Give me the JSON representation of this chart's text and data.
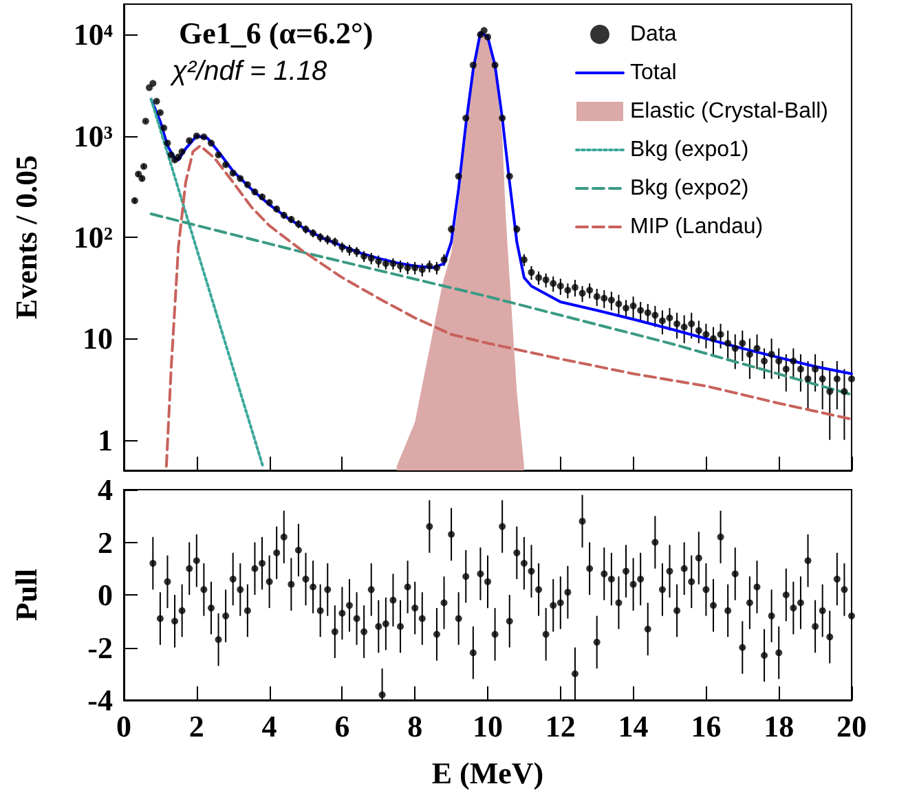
{
  "chart_data": [
    {
      "type": "scatter",
      "title": "Ge1_6 (α=6.2°)",
      "annotations": [
        "χ²/ndf = 1.18"
      ],
      "ylabel": "Events / 0.05",
      "log": "y",
      "grid": false,
      "legend": "top right",
      "tick_labels": "y",
      "xlim": [
        0,
        20
      ],
      "xticks": [
        {
          "value": 0,
          "label": null
        },
        {
          "value": 2,
          "label": null
        },
        {
          "value": 4,
          "label": null
        },
        {
          "value": 6,
          "label": null
        },
        {
          "value": 8,
          "label": null
        },
        {
          "value": 10,
          "label": null
        },
        {
          "value": 12,
          "label": null
        },
        {
          "value": 14,
          "label": null
        },
        {
          "value": 16,
          "label": null
        },
        {
          "value": 18,
          "label": null
        },
        {
          "value": 20,
          "label": null
        }
      ],
      "ylim": [
        0.5,
        20000
      ],
      "yticks": [
        1,
        10,
        {
          "value": 100,
          "label": "10²"
        },
        {
          "value": 1000,
          "label": "10³"
        },
        {
          "value": 10000,
          "label": "10⁴"
        }
      ],
      "series": [
        {
          "name": "Data",
          "type": "scatter",
          "color": "#000000",
          "marker": "circle",
          "x": [
            0.3,
            0.4,
            0.5,
            0.55,
            0.6,
            0.7,
            0.8,
            0.9,
            1.0,
            1.1,
            1.2,
            1.3,
            1.4,
            1.5,
            1.6,
            1.8,
            2.0,
            2.2,
            2.4,
            2.6,
            2.8,
            3.0,
            3.2,
            3.4,
            3.6,
            3.8,
            4.0,
            4.2,
            4.4,
            4.6,
            4.8,
            5.0,
            5.2,
            5.4,
            5.6,
            5.8,
            6.0,
            6.2,
            6.4,
            6.6,
            6.8,
            7.0,
            7.2,
            7.4,
            7.6,
            7.8,
            8.0,
            8.2,
            8.4,
            8.6,
            8.8,
            9.0,
            9.2,
            9.4,
            9.6,
            9.8,
            9.9,
            10.0,
            10.2,
            10.4,
            10.6,
            10.8,
            11.0,
            11.2,
            11.4,
            11.6,
            11.8,
            12.0,
            12.2,
            12.4,
            12.6,
            12.8,
            13.0,
            13.2,
            13.4,
            13.6,
            13.8,
            14.0,
            14.2,
            14.4,
            14.6,
            14.8,
            15.0,
            15.2,
            15.4,
            15.6,
            15.8,
            16.0,
            16.2,
            16.4,
            16.6,
            16.8,
            17.0,
            17.2,
            17.4,
            17.6,
            17.8,
            18.0,
            18.2,
            18.4,
            18.6,
            18.8,
            19.0,
            19.2,
            19.4,
            19.6,
            19.8,
            20.0
          ],
          "values": [
            230,
            420,
            380,
            500,
            1400,
            3000,
            3300,
            2200,
            1700,
            1200,
            850,
            650,
            580,
            620,
            700,
            900,
            1000,
            980,
            850,
            650,
            520,
            430,
            380,
            330,
            280,
            250,
            220,
            190,
            165,
            150,
            135,
            120,
            110,
            100,
            95,
            90,
            80,
            75,
            72,
            65,
            62,
            58,
            55,
            55,
            52,
            50,
            50,
            48,
            52,
            50,
            60,
            120,
            400,
            1500,
            5000,
            10000,
            11000,
            9500,
            5000,
            1500,
            400,
            120,
            60,
            45,
            40,
            38,
            35,
            33,
            30,
            32,
            28,
            30,
            26,
            25,
            24,
            22,
            20,
            21,
            19,
            18,
            17,
            15,
            16,
            14,
            13,
            14,
            12,
            11,
            10,
            11,
            9,
            8,
            9,
            7,
            8,
            6,
            7,
            6,
            5,
            6,
            5,
            4,
            5,
            4,
            3,
            4,
            3,
            4
          ],
          "errors": [
            15,
            20,
            20,
            22,
            37,
            null,
            null,
            47,
            41,
            35,
            29,
            25,
            24,
            25,
            26,
            30,
            32,
            31,
            29,
            25,
            23,
            21,
            19,
            18,
            17,
            16,
            15,
            14,
            13,
            12,
            12,
            11,
            10,
            10,
            10,
            9,
            9,
            9,
            8,
            8,
            8,
            8,
            7,
            7,
            7,
            7,
            7,
            7,
            7,
            7,
            8,
            11,
            20,
            39,
            null,
            null,
            null,
            null,
            null,
            39,
            20,
            11,
            8,
            7,
            6,
            6,
            6,
            6,
            5,
            6,
            5,
            5,
            5,
            5,
            5,
            5,
            4,
            5,
            4,
            4,
            4,
            4,
            4,
            4,
            4,
            4,
            3,
            3,
            3,
            3,
            3,
            3,
            3,
            3,
            3,
            2,
            3,
            2,
            2,
            2,
            2,
            2,
            2,
            2,
            2,
            2,
            2,
            2
          ]
        },
        {
          "name": "Total",
          "type": "line",
          "color": "#0000ff",
          "marker": "none",
          "line_style": "solid",
          "x": [
            0.75,
            1.0,
            1.2,
            1.4,
            1.5,
            1.7,
            2.0,
            2.3,
            2.6,
            3.0,
            3.5,
            4.0,
            4.5,
            5.0,
            5.5,
            6.0,
            6.5,
            7.0,
            7.5,
            8.0,
            8.5,
            8.8,
            9.0,
            9.2,
            9.4,
            9.6,
            9.8,
            10.0,
            10.2,
            10.4,
            10.6,
            10.8,
            11.0,
            11.2,
            12,
            13,
            14,
            15,
            16,
            17,
            18,
            19,
            20
          ],
          "values": [
            2300,
            1400,
            800,
            600,
            580,
            750,
            1000,
            950,
            700,
            450,
            300,
            210,
            155,
            120,
            97,
            82,
            70,
            62,
            56,
            52,
            50,
            55,
            90,
            300,
            1300,
            4500,
            10500,
            9500,
            5000,
            1500,
            350,
            90,
            40,
            33,
            23,
            19,
            15.5,
            12.5,
            10,
            8,
            6.5,
            5.3,
            4.5
          ]
        },
        {
          "name": "Elastic (Crystal-Ball)",
          "type": "area",
          "color": "#dba9a7",
          "x": [
            7.5,
            8.0,
            8.5,
            8.76,
            9.0,
            9.2,
            9.4,
            9.6,
            9.8,
            9.9,
            10.0,
            10.2,
            10.4,
            10.5,
            10.6,
            10.8,
            11.0
          ],
          "values": [
            0.55,
            1.5,
            12,
            35,
            70,
            220,
            1000,
            4000,
            10500,
            11000,
            9500,
            4500,
            1000,
            150,
            40,
            3,
            0.55
          ]
        },
        {
          "name": "Bkg (expo1)",
          "type": "line",
          "color": "#3aa89a",
          "marker": "none",
          "line_style": "dotted",
          "x": [
            0.75,
            3.82
          ],
          "values": [
            2300,
            0.55
          ]
        },
        {
          "name": "Bkg (expo2)",
          "type": "line",
          "color": "#3a9a84",
          "marker": "none",
          "line_style": "dashed",
          "x": [
            0.75,
            5,
            10,
            15,
            20
          ],
          "values": [
            170,
            70,
            26,
            9,
            2.8
          ]
        },
        {
          "name": "MIP (Landau)",
          "type": "line",
          "color": "#c8625c",
          "marker": "none",
          "line_style": "dashed",
          "x": [
            1.17,
            1.3,
            1.5,
            1.7,
            1.9,
            2.1,
            2.5,
            3,
            3.5,
            4,
            4.9,
            6,
            7,
            8,
            9,
            10,
            12,
            14,
            16,
            18,
            20
          ],
          "values": [
            0.55,
            5,
            80,
            350,
            700,
            800,
            600,
            350,
            200,
            130,
            74,
            40,
            25,
            16,
            11,
            9,
            6.3,
            4.5,
            3.4,
            2.3,
            1.6
          ]
        }
      ]
    },
    {
      "type": "scatter",
      "xlabel": "E (MeV)",
      "ylabel": "Pull",
      "grid": false,
      "marker": "circle",
      "color": "#000000",
      "xlim": [
        0,
        20
      ],
      "xticks": [
        0,
        2,
        4,
        6,
        8,
        10,
        12,
        14,
        16,
        18,
        20
      ],
      "ylim": [
        -4,
        4
      ],
      "yticks": [
        -4,
        -2,
        0,
        2,
        4
      ],
      "x": [
        0.8,
        1.0,
        1.2,
        1.4,
        1.6,
        1.8,
        2.0,
        2.2,
        2.4,
        2.6,
        2.8,
        3.0,
        3.2,
        3.4,
        3.6,
        3.8,
        4.0,
        4.2,
        4.4,
        4.6,
        4.8,
        5.0,
        5.2,
        5.4,
        5.6,
        5.8,
        6.0,
        6.2,
        6.4,
        6.6,
        6.8,
        7.0,
        7.1,
        7.2,
        7.4,
        7.6,
        7.8,
        8.0,
        8.2,
        8.4,
        8.6,
        8.8,
        9.0,
        9.2,
        9.4,
        9.6,
        9.8,
        10.0,
        10.2,
        10.4,
        10.6,
        10.8,
        11.0,
        11.2,
        11.4,
        11.6,
        11.8,
        12.0,
        12.2,
        12.4,
        12.6,
        12.8,
        13.0,
        13.2,
        13.4,
        13.6,
        13.8,
        14.0,
        14.2,
        14.4,
        14.6,
        14.8,
        15.0,
        15.2,
        15.4,
        15.6,
        15.8,
        16.0,
        16.2,
        16.4,
        16.6,
        16.8,
        17.0,
        17.2,
        17.4,
        17.6,
        17.8,
        18.0,
        18.2,
        18.4,
        18.6,
        18.8,
        19.0,
        19.2,
        19.4,
        19.6,
        19.8,
        20.0
      ],
      "values": [
        1.2,
        -0.9,
        0.5,
        -1.0,
        -0.6,
        1.0,
        1.3,
        0.2,
        -0.5,
        -1.7,
        -0.8,
        0.6,
        0.2,
        -0.6,
        1.0,
        1.2,
        0.5,
        1.6,
        2.2,
        0.4,
        1.7,
        0.6,
        0.3,
        -0.6,
        0.2,
        -1.4,
        -0.7,
        -0.4,
        -0.9,
        -1.4,
        0.2,
        -1.2,
        -3.8,
        -1.1,
        -0.2,
        -1.2,
        0.3,
        -0.5,
        -0.9,
        2.6,
        -1.5,
        -0.3,
        2.3,
        -0.9,
        0.7,
        -2.2,
        0.8,
        0.5,
        -1.5,
        2.6,
        -1.0,
        1.6,
        1.2,
        0.9,
        0.2,
        -1.5,
        -0.4,
        -0.3,
        0.1,
        -3.0,
        2.8,
        1.0,
        -1.8,
        0.8,
        0.6,
        -0.3,
        0.9,
        0.4,
        0.6,
        -1.3,
        2.0,
        0.2,
        0.9,
        -0.6,
        1.0,
        0.5,
        1.4,
        0.2,
        -0.4,
        2.2,
        -0.6,
        0.8,
        -2.0,
        -0.3,
        0.3,
        -2.3,
        -0.8,
        -2.2,
        0.0,
        -0.5,
        -0.3,
        1.3,
        -1.2,
        -0.6,
        -1.6,
        0.6,
        0.2,
        -0.8
      ],
      "errors": [
        1,
        1,
        1,
        1,
        1,
        1,
        1,
        1,
        1,
        1,
        1,
        1,
        1,
        1,
        1,
        1,
        1,
        1,
        1,
        1,
        1,
        1,
        1,
        1,
        1,
        1,
        1,
        1,
        1,
        1,
        1,
        1,
        [
          -4,
          -2.8
        ],
        1,
        1,
        1,
        1,
        1,
        1,
        1,
        1,
        1,
        1,
        1,
        1,
        1,
        1,
        1,
        1,
        1,
        1,
        1,
        1,
        1,
        1,
        1,
        1,
        1,
        1,
        1,
        1,
        1,
        1,
        1,
        1,
        1,
        1,
        1,
        1,
        1,
        1,
        1,
        1,
        1,
        1,
        1,
        1,
        1,
        1,
        1,
        1,
        1,
        1,
        1,
        1,
        1,
        1,
        1,
        1,
        1,
        1,
        1,
        1,
        1,
        1,
        1,
        1,
        1
      ]
    }
  ]
}
